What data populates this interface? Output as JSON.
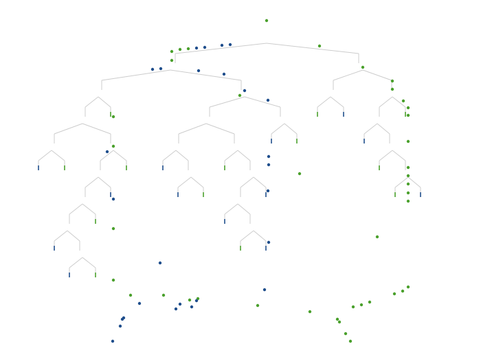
{
  "colors": {
    "background": "#ffffff",
    "edge": "#cccccc",
    "green": "#4aa02c",
    "blue": "#1f4e8c"
  },
  "scale": {
    "w": 700,
    "h": 520
  },
  "edges": [
    [
      255,
      78,
      388,
      63
    ],
    [
      388,
      63,
      522,
      78
    ],
    [
      255,
      78,
      255,
      92
    ],
    [
      522,
      78,
      522,
      92
    ],
    [
      148,
      117,
      248,
      102
    ],
    [
      248,
      102,
      351,
      117
    ],
    [
      148,
      117,
      148,
      131
    ],
    [
      351,
      117,
      351,
      131
    ],
    [
      485,
      117,
      528,
      102
    ],
    [
      528,
      102,
      570,
      117
    ],
    [
      485,
      117,
      485,
      131
    ],
    [
      570,
      117,
      570,
      131
    ],
    [
      124,
      156,
      143,
      141
    ],
    [
      143,
      141,
      161,
      156
    ],
    [
      124,
      156,
      124,
      170
    ],
    [
      161,
      156,
      161,
      170
    ],
    [
      305,
      156,
      356,
      141
    ],
    [
      356,
      141,
      408,
      156
    ],
    [
      305,
      156,
      305,
      170
    ],
    [
      408,
      156,
      408,
      170
    ],
    [
      462,
      156,
      481,
      141
    ],
    [
      481,
      141,
      500,
      156
    ],
    [
      462,
      156,
      462,
      170
    ],
    [
      500,
      156,
      500,
      170
    ],
    [
      552,
      156,
      571,
      141
    ],
    [
      571,
      141,
      590,
      156
    ],
    [
      552,
      156,
      552,
      170
    ],
    [
      590,
      156,
      590,
      170
    ],
    [
      79,
      195,
      120,
      180
    ],
    [
      120,
      180,
      161,
      195
    ],
    [
      79,
      195,
      79,
      209
    ],
    [
      161,
      195,
      161,
      209
    ],
    [
      260,
      195,
      300,
      180
    ],
    [
      300,
      180,
      341,
      195
    ],
    [
      260,
      195,
      260,
      209
    ],
    [
      341,
      195,
      341,
      209
    ],
    [
      395,
      195,
      414,
      180
    ],
    [
      414,
      180,
      432,
      195
    ],
    [
      395,
      195,
      395,
      209
    ],
    [
      432,
      195,
      432,
      209
    ],
    [
      530,
      195,
      549,
      180
    ],
    [
      549,
      180,
      567,
      195
    ],
    [
      530,
      195,
      530,
      209
    ],
    [
      567,
      195,
      567,
      209
    ],
    [
      56,
      234,
      75,
      219
    ],
    [
      75,
      219,
      94,
      234
    ],
    [
      56,
      234,
      56,
      248
    ],
    [
      94,
      234,
      94,
      248
    ],
    [
      146,
      234,
      165,
      219
    ],
    [
      165,
      219,
      184,
      234
    ],
    [
      146,
      234,
      146,
      248
    ],
    [
      184,
      234,
      184,
      248
    ],
    [
      237,
      234,
      256,
      219
    ],
    [
      256,
      219,
      274,
      234
    ],
    [
      237,
      234,
      237,
      248
    ],
    [
      274,
      234,
      274,
      248
    ],
    [
      327,
      234,
      346,
      219
    ],
    [
      346,
      219,
      364,
      234
    ],
    [
      327,
      234,
      327,
      248
    ],
    [
      364,
      234,
      364,
      248
    ],
    [
      552,
      234,
      571,
      219
    ],
    [
      571,
      219,
      590,
      234
    ],
    [
      552,
      234,
      552,
      248
    ],
    [
      590,
      234,
      590,
      248
    ],
    [
      124,
      273,
      143,
      258
    ],
    [
      143,
      258,
      161,
      273
    ],
    [
      124,
      273,
      124,
      287
    ],
    [
      161,
      273,
      161,
      287
    ],
    [
      259,
      273,
      278,
      258
    ],
    [
      278,
      258,
      296,
      273
    ],
    [
      259,
      273,
      259,
      287
    ],
    [
      296,
      273,
      296,
      287
    ],
    [
      350,
      273,
      369,
      258
    ],
    [
      369,
      258,
      387,
      273
    ],
    [
      350,
      273,
      350,
      287
    ],
    [
      387,
      273,
      387,
      287
    ],
    [
      575,
      273,
      594,
      258
    ],
    [
      594,
      258,
      612,
      273
    ],
    [
      575,
      273,
      575,
      287
    ],
    [
      612,
      273,
      612,
      287
    ],
    [
      101,
      312,
      120,
      297
    ],
    [
      120,
      297,
      139,
      312
    ],
    [
      101,
      312,
      101,
      326
    ],
    [
      139,
      312,
      139,
      326
    ],
    [
      327,
      312,
      346,
      297
    ],
    [
      346,
      297,
      364,
      312
    ],
    [
      327,
      312,
      327,
      326
    ],
    [
      364,
      312,
      364,
      326
    ],
    [
      79,
      351,
      98,
      336
    ],
    [
      98,
      336,
      116,
      351
    ],
    [
      79,
      351,
      79,
      365
    ],
    [
      116,
      351,
      116,
      365
    ],
    [
      350,
      351,
      369,
      336
    ],
    [
      369,
      336,
      387,
      351
    ],
    [
      350,
      351,
      350,
      365
    ],
    [
      387,
      351,
      387,
      365
    ],
    [
      101,
      390,
      120,
      375
    ],
    [
      120,
      375,
      139,
      390
    ],
    [
      101,
      390,
      101,
      404
    ],
    [
      139,
      390,
      139,
      404
    ]
  ],
  "stubs": [
    [
      161,
      163,
      "green"
    ],
    [
      462,
      163,
      "green"
    ],
    [
      500,
      163,
      "blue"
    ],
    [
      590,
      163,
      "green"
    ],
    [
      395,
      202,
      "blue"
    ],
    [
      432,
      202,
      "green"
    ],
    [
      530,
      202,
      "blue"
    ],
    [
      56,
      241,
      "blue"
    ],
    [
      94,
      241,
      "green"
    ],
    [
      184,
      241,
      "green"
    ],
    [
      237,
      241,
      "blue"
    ],
    [
      327,
      241,
      "green"
    ],
    [
      552,
      241,
      "green"
    ],
    [
      161,
      280,
      "blue"
    ],
    [
      259,
      280,
      "blue"
    ],
    [
      296,
      280,
      "green"
    ],
    [
      387,
      280,
      "blue"
    ],
    [
      575,
      280,
      "green"
    ],
    [
      612,
      280,
      "blue"
    ],
    [
      139,
      319,
      "green"
    ],
    [
      327,
      319,
      "blue"
    ],
    [
      79,
      358,
      "blue"
    ],
    [
      350,
      358,
      "green"
    ],
    [
      387,
      358,
      "blue"
    ],
    [
      101,
      397,
      "blue"
    ],
    [
      139,
      397,
      "green"
    ]
  ],
  "nodes": [
    [
      388,
      30,
      "green"
    ],
    [
      465,
      67,
      "green"
    ],
    [
      250,
      75,
      "green"
    ],
    [
      262,
      72,
      "green"
    ],
    [
      274,
      71,
      "green"
    ],
    [
      286,
      70,
      "blue"
    ],
    [
      298,
      69,
      "blue"
    ],
    [
      323,
      66,
      "blue"
    ],
    [
      335,
      65,
      "blue"
    ],
    [
      250,
      88,
      "green"
    ],
    [
      528,
      98,
      "green"
    ],
    [
      222,
      101,
      "blue"
    ],
    [
      234,
      100,
      "blue"
    ],
    [
      289,
      103,
      "blue"
    ],
    [
      326,
      108,
      "blue"
    ],
    [
      571,
      118,
      "green"
    ],
    [
      571,
      130,
      "green"
    ],
    [
      356,
      132,
      "blue"
    ],
    [
      349,
      139,
      "green"
    ],
    [
      390,
      146,
      "blue"
    ],
    [
      587,
      147,
      "green"
    ],
    [
      594,
      157,
      "green"
    ],
    [
      594,
      168,
      "green"
    ],
    [
      165,
      170,
      "green"
    ],
    [
      594,
      206,
      "green"
    ],
    [
      165,
      213,
      "green"
    ],
    [
      156,
      221,
      "blue"
    ],
    [
      391,
      228,
      "blue"
    ],
    [
      391,
      240,
      "blue"
    ],
    [
      594,
      244,
      "green"
    ],
    [
      436,
      253,
      "green"
    ],
    [
      594,
      256,
      "green"
    ],
    [
      594,
      268,
      "green"
    ],
    [
      390,
      278,
      "blue"
    ],
    [
      594,
      281,
      "green"
    ],
    [
      165,
      290,
      "blue"
    ],
    [
      594,
      293,
      "green"
    ],
    [
      165,
      333,
      "green"
    ],
    [
      549,
      345,
      "green"
    ],
    [
      391,
      353,
      "blue"
    ],
    [
      233,
      383,
      "blue"
    ],
    [
      165,
      408,
      "green"
    ],
    [
      594,
      418,
      "green"
    ],
    [
      586,
      424,
      "green"
    ],
    [
      385,
      422,
      "blue"
    ],
    [
      574,
      428,
      "green"
    ],
    [
      190,
      430,
      "green"
    ],
    [
      238,
      430,
      "green"
    ],
    [
      288,
      435,
      "green"
    ],
    [
      276,
      437,
      "green"
    ],
    [
      286,
      438,
      "blue"
    ],
    [
      538,
      440,
      "green"
    ],
    [
      203,
      442,
      "blue"
    ],
    [
      262,
      443,
      "blue"
    ],
    [
      375,
      445,
      "green"
    ],
    [
      526,
      444,
      "green"
    ],
    [
      279,
      447,
      "blue"
    ],
    [
      514,
      447,
      "green"
    ],
    [
      256,
      450,
      "blue"
    ],
    [
      451,
      454,
      "green"
    ],
    [
      180,
      463,
      "blue"
    ],
    [
      178,
      465,
      "blue"
    ],
    [
      491,
      465,
      "green"
    ],
    [
      494,
      469,
      "green"
    ],
    [
      175,
      475,
      "blue"
    ],
    [
      503,
      486,
      "green"
    ],
    [
      510,
      497,
      "green"
    ],
    [
      164,
      497,
      "blue"
    ]
  ]
}
